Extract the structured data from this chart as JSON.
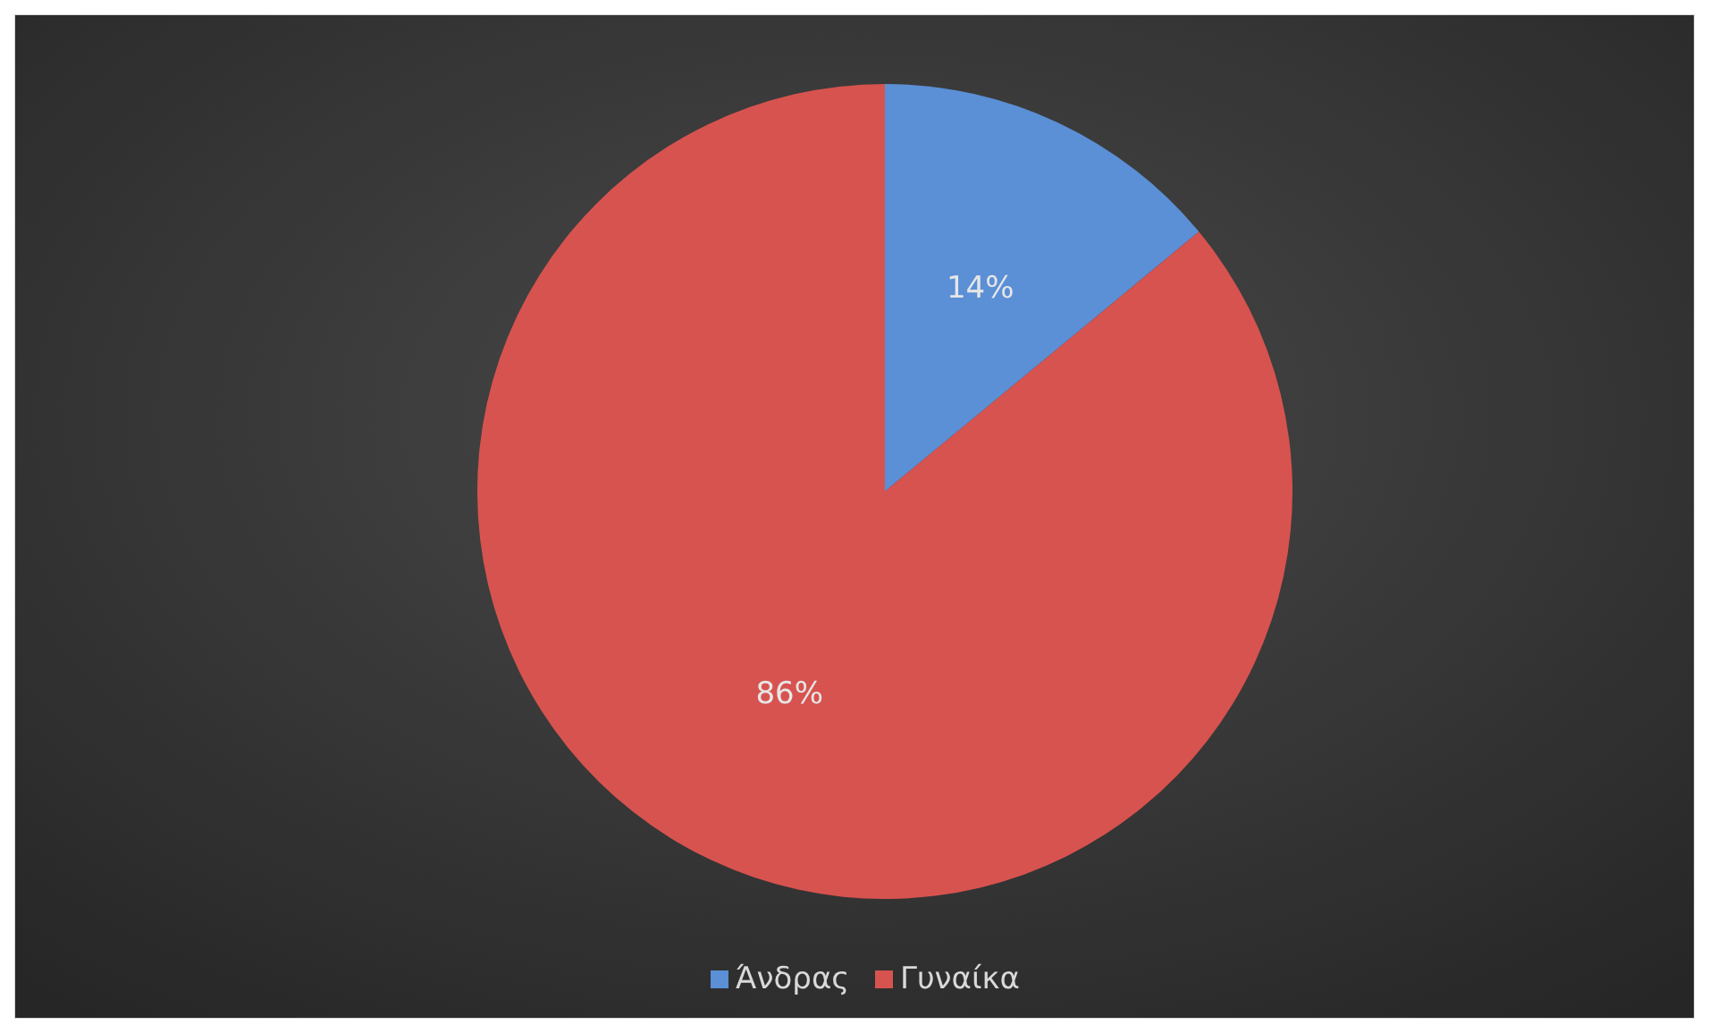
{
  "chart_data": {
    "type": "pie",
    "categories": [
      "Άνδρας",
      "Γυναίκα"
    ],
    "values": [
      14,
      86
    ],
    "colors": [
      "#5b8fd6",
      "#d7534f"
    ],
    "value_labels": [
      "14%",
      "86%"
    ],
    "legend": "bottom"
  }
}
